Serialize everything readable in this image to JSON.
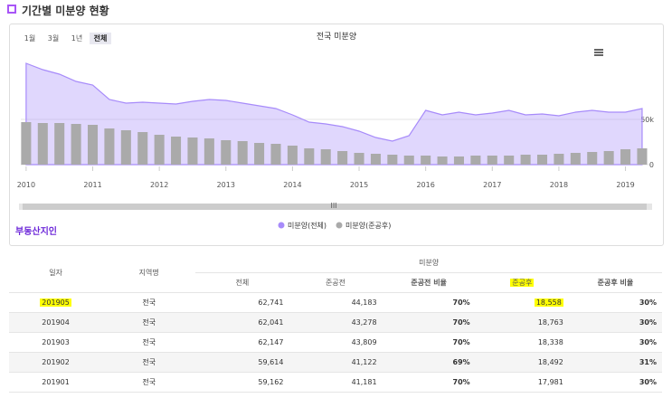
{
  "section_title": "기간별 미분양 현황",
  "buttons": [
    "1월",
    "3월",
    "1년",
    "전체"
  ],
  "logo": "부동산지인",
  "chart_data": {
    "type": "area-bar",
    "title": "전국 미분양",
    "x": [
      2010,
      2010.25,
      2010.5,
      2010.75,
      2011,
      2011.25,
      2011.5,
      2011.75,
      2012,
      2012.25,
      2012.5,
      2012.75,
      2013,
      2013.25,
      2013.5,
      2013.75,
      2014,
      2014.25,
      2014.5,
      2014.75,
      2015,
      2015.25,
      2015.5,
      2015.75,
      2016,
      2016.25,
      2016.5,
      2016.75,
      2017,
      2017.25,
      2017.5,
      2017.75,
      2018,
      2018.25,
      2018.5,
      2018.75,
      2019,
      2019.25
    ],
    "series": [
      {
        "name": "미분양(전체)",
        "color": "#a78bfa",
        "values": [
          112000,
          105000,
          100000,
          92000,
          88000,
          72000,
          68000,
          69000,
          68000,
          67000,
          70000,
          72000,
          71000,
          68000,
          65000,
          62000,
          55000,
          47000,
          45000,
          42000,
          37000,
          30000,
          26000,
          32000,
          60000,
          55000,
          58000,
          55000,
          57000,
          60000,
          55000,
          56000,
          54000,
          58000,
          60000,
          58000,
          58000,
          62000
        ]
      },
      {
        "name": "미분양(준공후)",
        "color": "#aaaaaa",
        "values": [
          47000,
          46000,
          46000,
          45000,
          44000,
          40000,
          38000,
          36000,
          33000,
          31000,
          30000,
          29000,
          27000,
          26000,
          24000,
          23000,
          21000,
          18000,
          17000,
          15000,
          13000,
          12000,
          11000,
          10000,
          10000,
          9000,
          9000,
          10000,
          10000,
          10000,
          11000,
          11000,
          12000,
          13000,
          14000,
          15000,
          17000,
          18000
        ]
      }
    ],
    "xlim": [
      2009.92,
      2019.4
    ],
    "xticks": [
      2010,
      2011,
      2012,
      2013,
      2014,
      2015,
      2016,
      2017,
      2018,
      2019
    ],
    "ylim": [
      0,
      125000
    ],
    "yticks": [
      0,
      {
        "value": 50000,
        "label": "50k"
      }
    ],
    "grid": true
  },
  "table": {
    "group_header": "미분양",
    "headers": [
      "일자",
      "지역명",
      "전체",
      "준공전",
      "준공전 비율",
      "준공후",
      "준공후 비율"
    ],
    "rows": [
      [
        "201905",
        "전국",
        "62,741",
        "44,183",
        "70%",
        "18,558",
        "30%"
      ],
      [
        "201904",
        "전국",
        "62,041",
        "43,278",
        "70%",
        "18,763",
        "30%"
      ],
      [
        "201903",
        "전국",
        "62,147",
        "43,809",
        "70%",
        "18,338",
        "30%"
      ],
      [
        "201902",
        "전국",
        "59,614",
        "41,122",
        "69%",
        "18,492",
        "31%"
      ],
      [
        "201901",
        "전국",
        "59,162",
        "41,181",
        "70%",
        "17,981",
        "30%"
      ]
    ]
  }
}
